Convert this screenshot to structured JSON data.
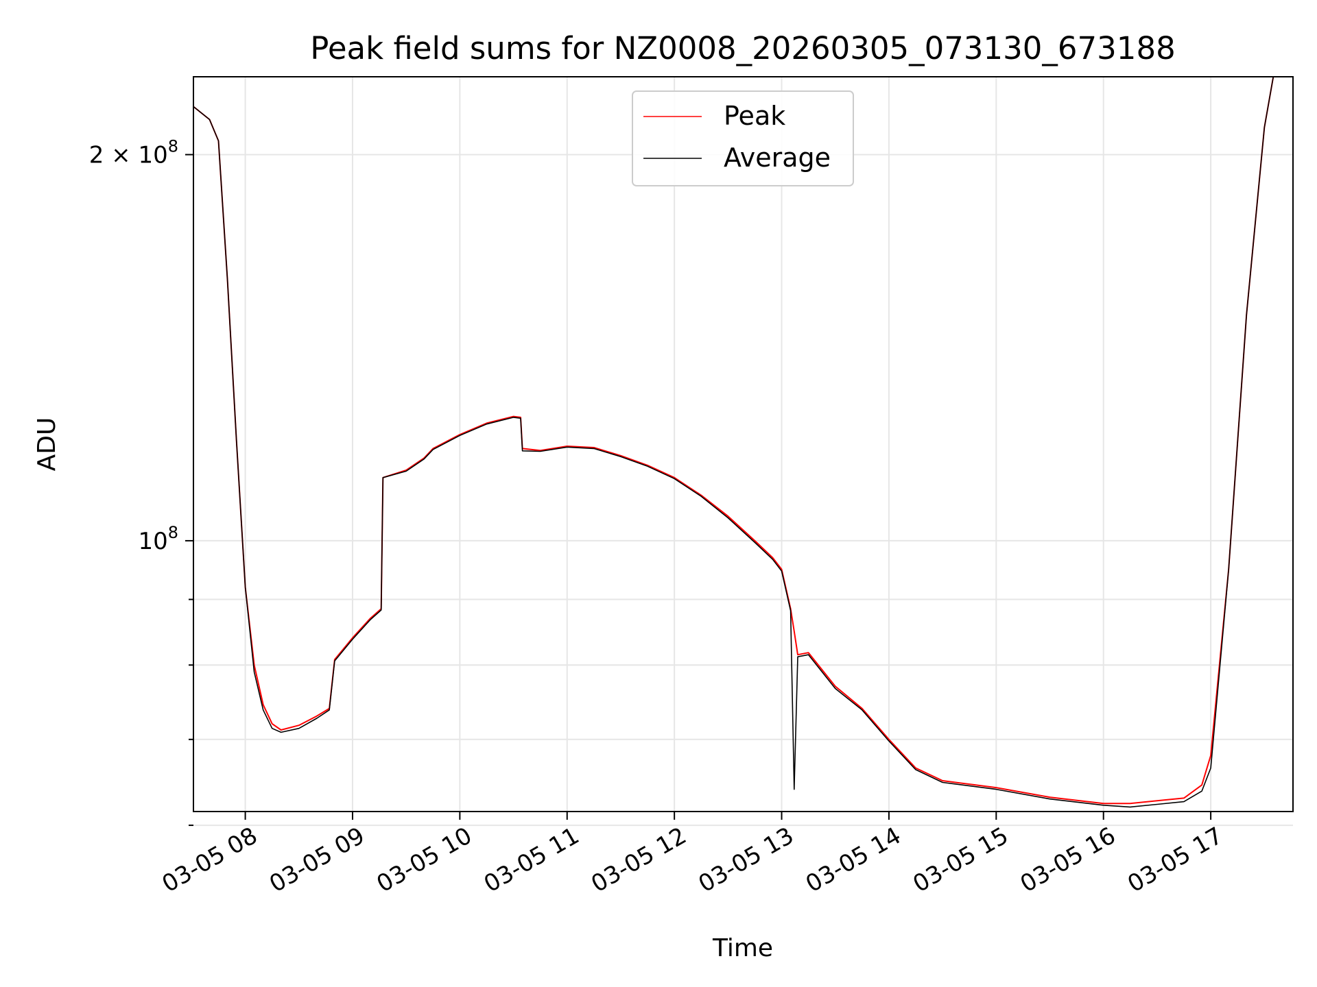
{
  "chart_data": {
    "type": "line",
    "title": "Peak field sums for NZ0008_20260305_073130_673188",
    "xlabel": "Time",
    "ylabel": "ADU",
    "yscale": "log",
    "xlim": [
      "2026-03-05T07:31",
      "2026-03-05T17:46"
    ],
    "ylim": [
      61500000,
      230000000
    ],
    "x_tick_labels": [
      "03-05 08",
      "03-05 09",
      "03-05 10",
      "03-05 11",
      "03-05 12",
      "03-05 13",
      "03-05 14",
      "03-05 15",
      "03-05 16",
      "03-05 17"
    ],
    "x_ticks": [
      "2026-03-05T08:00",
      "2026-03-05T09:00",
      "2026-03-05T10:00",
      "2026-03-05T11:00",
      "2026-03-05T12:00",
      "2026-03-05T13:00",
      "2026-03-05T14:00",
      "2026-03-05T15:00",
      "2026-03-05T16:00",
      "2026-03-05T17:00"
    ],
    "y_major_ticks": [
      {
        "value": 100000000,
        "mantissa": "",
        "exponent": "8"
      },
      {
        "value": 200000000,
        "mantissa": "2",
        "exponent": "8"
      }
    ],
    "y_minor_ticks": [
      60000000,
      70000000,
      80000000,
      90000000
    ],
    "grid": true,
    "legend_position": "upper-center",
    "x": [
      "2026-03-05T07:31",
      "2026-03-05T07:40",
      "2026-03-05T07:45",
      "2026-03-05T07:50",
      "2026-03-05T07:55",
      "2026-03-05T08:00",
      "2026-03-05T08:05",
      "2026-03-05T08:10",
      "2026-03-05T08:15",
      "2026-03-05T08:20",
      "2026-03-05T08:30",
      "2026-03-05T08:40",
      "2026-03-05T08:47",
      "2026-03-05T08:50",
      "2026-03-05T09:00",
      "2026-03-05T09:10",
      "2026-03-05T09:16",
      "2026-03-05T09:17",
      "2026-03-05T09:30",
      "2026-03-05T09:40",
      "2026-03-05T09:45",
      "2026-03-05T10:00",
      "2026-03-05T10:15",
      "2026-03-05T10:30",
      "2026-03-05T10:34",
      "2026-03-05T10:35",
      "2026-03-05T10:45",
      "2026-03-05T11:00",
      "2026-03-05T11:15",
      "2026-03-05T11:30",
      "2026-03-05T11:45",
      "2026-03-05T12:00",
      "2026-03-05T12:15",
      "2026-03-05T12:30",
      "2026-03-05T12:45",
      "2026-03-05T12:55",
      "2026-03-05T13:00",
      "2026-03-05T13:05",
      "2026-03-05T13:07",
      "2026-03-05T13:09",
      "2026-03-05T13:15",
      "2026-03-05T13:30",
      "2026-03-05T13:45",
      "2026-03-05T14:00",
      "2026-03-05T14:15",
      "2026-03-05T14:30",
      "2026-03-05T15:00",
      "2026-03-05T15:30",
      "2026-03-05T16:00",
      "2026-03-05T16:15",
      "2026-03-05T16:30",
      "2026-03-05T16:45",
      "2026-03-05T16:55",
      "2026-03-05T17:00",
      "2026-03-05T17:10",
      "2026-03-05T17:20",
      "2026-03-05T17:30",
      "2026-03-05T17:35",
      "2026-03-05T17:46"
    ],
    "series": [
      {
        "name": "Peak",
        "color": "#ff0000",
        "values": [
          218000000,
          213000000,
          205000000,
          160000000,
          120000000,
          92000000,
          80000000,
          74500000,
          72000000,
          71200000,
          71800000,
          73000000,
          74000000,
          80800000,
          84000000,
          87000000,
          88500000,
          112000000,
          113500000,
          116000000,
          118000000,
          121000000,
          123500000,
          125000000,
          124800000,
          118000000,
          117600000,
          118500000,
          118200000,
          116500000,
          114500000,
          112000000,
          108500000,
          104500000,
          100000000,
          97000000,
          95000000,
          88500000,
          85000000,
          81500000,
          81800000,
          77000000,
          74000000,
          70000000,
          66500000,
          65000000,
          64200000,
          63100000,
          62400000,
          62400000,
          62700000,
          63000000,
          64500000,
          68000000,
          95000000,
          150000000,
          210000000,
          230000000,
          230000000
        ]
      },
      {
        "name": "Average",
        "color": "#000000",
        "values": [
          218000000,
          213000000,
          205000000,
          160000000,
          120000000,
          92000000,
          79000000,
          73800000,
          71400000,
          70900000,
          71400000,
          72700000,
          73800000,
          80600000,
          83800000,
          86800000,
          88300000,
          112000000,
          113300000,
          115800000,
          117800000,
          120800000,
          123300000,
          124800000,
          124600000,
          117500000,
          117400000,
          118300000,
          118000000,
          116300000,
          114300000,
          111800000,
          108300000,
          104200000,
          99700000,
          96700000,
          94700000,
          88200000,
          64000000,
          81200000,
          81500000,
          76700000,
          73800000,
          69800000,
          66300000,
          64800000,
          64000000,
          62900000,
          62200000,
          62000000,
          62300000,
          62600000,
          63800000,
          66500000,
          95000000,
          150000000,
          210000000,
          230000000,
          230000000
        ]
      }
    ]
  }
}
